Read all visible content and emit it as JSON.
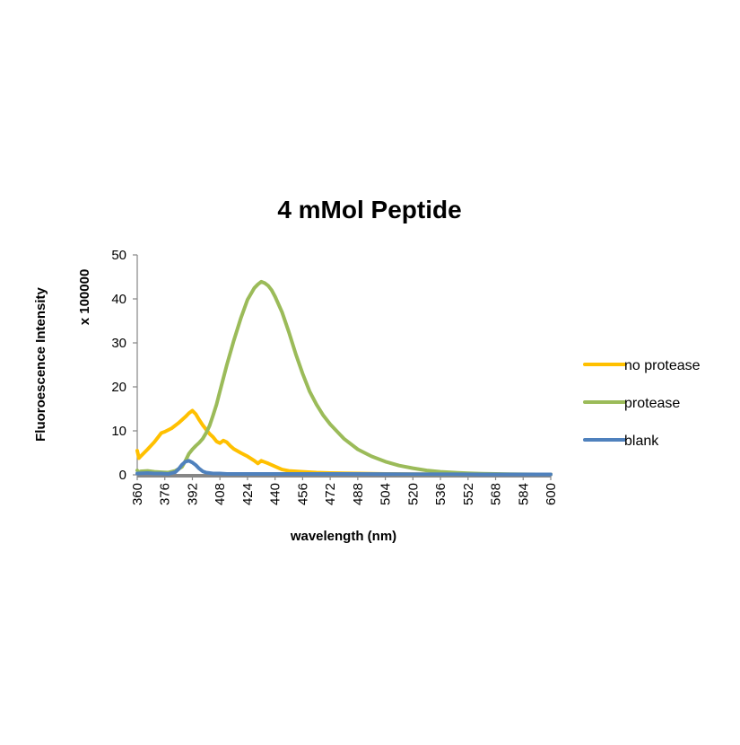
{
  "chart_data": {
    "type": "line",
    "title": "4 mMol Peptide",
    "xlabel": "wavelength (nm)",
    "ylabel": "Fluoroescence Intensity",
    "ylabel_secondary": "x 100000",
    "xlim": [
      360,
      600
    ],
    "ylim": [
      0,
      50
    ],
    "yticks": [
      0,
      10,
      20,
      30,
      40,
      50
    ],
    "xticks": [
      360,
      376,
      392,
      408,
      424,
      440,
      456,
      472,
      488,
      504,
      520,
      536,
      552,
      568,
      584,
      600
    ],
    "grid": false,
    "legend_position": "right",
    "series": [
      {
        "name": "no protease",
        "color": "#FFC000",
        "x": [
          360,
          361,
          362,
          366,
          370,
          374,
          376,
          380,
          384,
          388,
          390,
          392,
          394,
          396,
          398,
          400,
          402,
          404,
          406,
          408,
          410,
          412,
          414,
          416,
          420,
          424,
          428,
          430,
          432,
          434,
          436,
          440,
          444,
          448,
          456,
          464,
          472,
          488,
          504,
          520,
          536,
          552,
          568,
          584,
          600
        ],
        "y": [
          5.5,
          3.8,
          4.2,
          5.8,
          7.5,
          9.5,
          9.8,
          10.6,
          11.8,
          13.2,
          14.0,
          14.6,
          13.8,
          12.5,
          11.3,
          10.3,
          9.3,
          8.6,
          7.6,
          7.2,
          7.8,
          7.4,
          6.6,
          5.9,
          5.0,
          4.2,
          3.2,
          2.6,
          3.2,
          2.9,
          2.6,
          1.9,
          1.2,
          0.9,
          0.7,
          0.5,
          0.4,
          0.3,
          0.2,
          0.15,
          0.12,
          0.1,
          0.1,
          0.1,
          0.1
        ]
      },
      {
        "name": "protease",
        "color": "#9BBB59",
        "x": [
          360,
          361,
          362,
          366,
          370,
          374,
          378,
          382,
          386,
          388,
          390,
          392,
          394,
          396,
          398,
          400,
          402,
          404,
          406,
          408,
          412,
          416,
          420,
          424,
          428,
          430,
          432,
          434,
          436,
          438,
          440,
          444,
          448,
          452,
          456,
          460,
          464,
          468,
          472,
          480,
          488,
          496,
          504,
          512,
          520,
          528,
          536,
          544,
          552,
          560,
          568,
          576,
          584,
          592,
          600
        ],
        "y": [
          1.0,
          0.6,
          0.8,
          0.9,
          0.7,
          0.6,
          0.5,
          0.9,
          1.8,
          3.2,
          4.8,
          5.8,
          6.6,
          7.3,
          8.2,
          9.5,
          11.2,
          13.5,
          16.0,
          19.0,
          25.0,
          30.5,
          35.5,
          39.8,
          42.5,
          43.3,
          43.9,
          43.6,
          43.0,
          42.0,
          40.5,
          37.0,
          32.5,
          27.5,
          23.0,
          19.0,
          16.0,
          13.5,
          11.5,
          8.2,
          5.8,
          4.2,
          3.0,
          2.1,
          1.5,
          1.0,
          0.7,
          0.5,
          0.35,
          0.25,
          0.2,
          0.15,
          0.12,
          0.1,
          0.1
        ]
      },
      {
        "name": "blank",
        "color": "#4F81BD",
        "x": [
          360,
          366,
          370,
          374,
          378,
          382,
          384,
          386,
          388,
          390,
          392,
          394,
          396,
          398,
          400,
          402,
          404,
          406,
          408,
          412,
          420,
          440,
          480,
          520,
          560,
          600
        ],
        "y": [
          0.3,
          0.4,
          0.3,
          0.3,
          0.2,
          0.6,
          1.3,
          2.3,
          3.0,
          3.2,
          2.8,
          2.2,
          1.4,
          0.8,
          0.5,
          0.4,
          0.3,
          0.3,
          0.3,
          0.2,
          0.2,
          0.2,
          0.2,
          0.15,
          0.1,
          0.1
        ]
      }
    ]
  }
}
